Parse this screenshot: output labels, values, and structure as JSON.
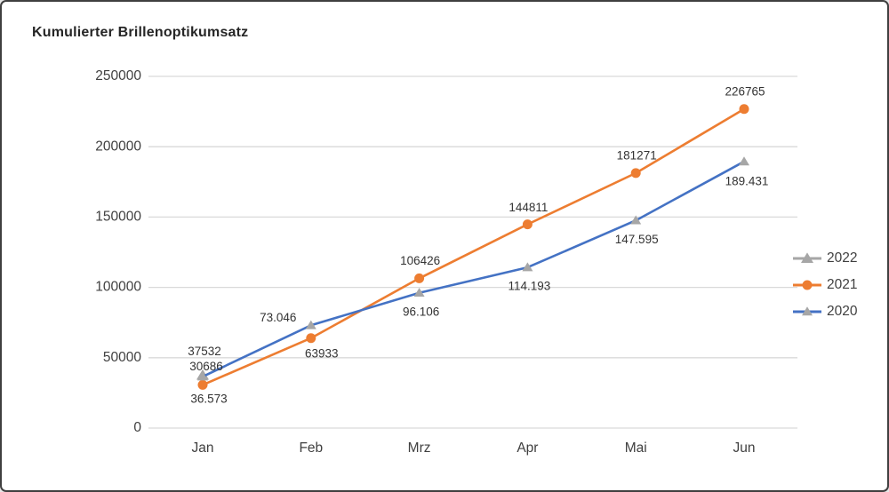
{
  "title": "Kumulierter Brillenoptikumsatz",
  "chart_data": {
    "type": "line",
    "title": "Kumulierter Brillenoptikumsatz",
    "categories": [
      "Jan",
      "Feb",
      "Mrz",
      "Apr",
      "Mai",
      "Jun"
    ],
    "series": [
      {
        "name": "2022",
        "line_color": "#a6a6a6",
        "marker": "triangle",
        "marker_color": "#a6a6a6",
        "marker_size": 7,
        "values": [
          37532,
          null,
          null,
          null,
          null,
          null
        ],
        "point_labels": [
          "37532",
          null,
          null,
          null,
          null,
          null
        ],
        "label_offsets": [
          [
            2,
            -26
          ],
          null,
          null,
          null,
          null,
          null
        ]
      },
      {
        "name": "2021",
        "line_color": "#ed7d31",
        "marker": "circle",
        "marker_color": "#ed7d31",
        "marker_size": 5.5,
        "values": [
          30686,
          63933,
          106426,
          144811,
          181271,
          226765
        ],
        "point_labels": [
          "30686",
          "63933",
          "106426",
          "144811",
          "181271",
          "226765"
        ],
        "label_offsets": [
          [
            4,
            -20
          ],
          [
            12,
            18
          ],
          [
            1,
            -19
          ],
          [
            1,
            -18
          ],
          [
            1,
            -19
          ],
          [
            1,
            -19
          ]
        ]
      },
      {
        "name": "2020",
        "line_color": "#4472c4",
        "marker": "triangle",
        "marker_color": "#a6a6a6",
        "marker_size": 6,
        "values": [
          36573,
          73046,
          96106,
          114193,
          147595,
          189431
        ],
        "point_labels": [
          "36.573",
          "73.046",
          "96.106",
          "114.193",
          "147.595",
          "189.431"
        ],
        "label_offsets": [
          [
            7,
            26
          ],
          [
            -37,
            -8
          ],
          [
            2,
            22
          ],
          [
            2,
            22
          ],
          [
            1,
            22
          ],
          [
            3,
            23
          ]
        ]
      }
    ],
    "ylim": [
      0,
      250000
    ],
    "yticks": [
      0,
      50000,
      100000,
      150000,
      200000,
      250000
    ],
    "ytick_labels": [
      "0",
      "50000",
      "100000",
      "150000",
      "200000",
      "250000"
    ],
    "xlabel": "",
    "ylabel": "",
    "grid": "horizontal",
    "legend_position": "right",
    "legend": [
      "2022",
      "2021",
      "2020"
    ],
    "colors": {
      "grid": "#d9d9d9",
      "axis_text": "#404040",
      "data_label_text": "#333333"
    }
  }
}
